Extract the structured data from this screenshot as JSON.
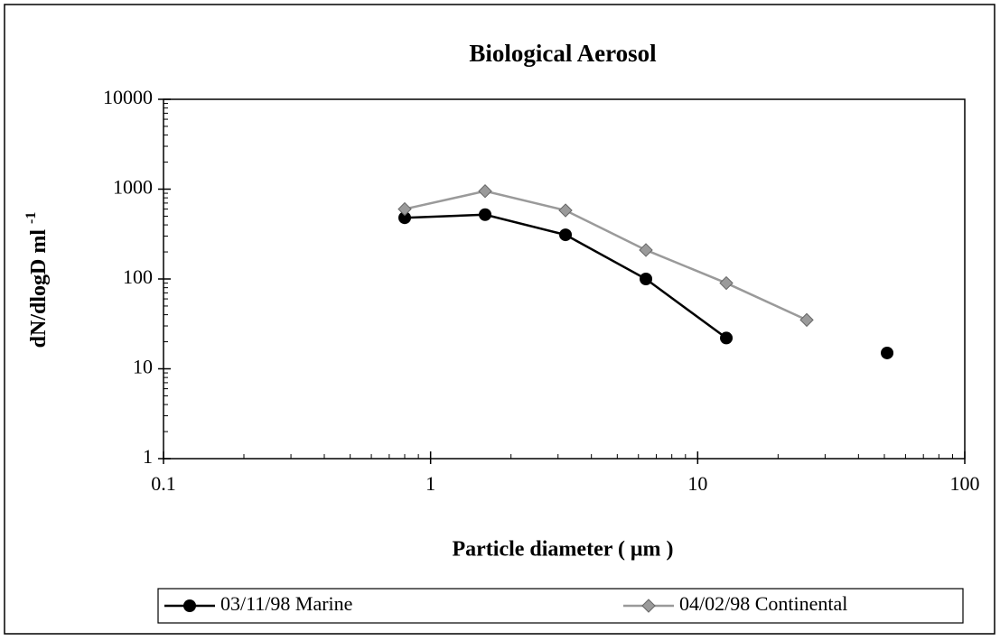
{
  "chart_data": {
    "type": "line",
    "title": "Biological Aerosol",
    "xlabel": "Particle  diameter  ( μm )",
    "ylabel": "dN/dlogD ml",
    "ylabel_superscript": "-1",
    "x": [
      0.8,
      1.6,
      3.2,
      6.4,
      12.8,
      25.6,
      51.2
    ],
    "series": [
      {
        "name": "03/11/98 Marine",
        "color": "#000000",
        "marker": "circle",
        "values": [
          480,
          520,
          310,
          100,
          22,
          null,
          15
        ]
      },
      {
        "name": "04/02/98 Continental",
        "color": "#9a9a9a",
        "marker": "diamond",
        "values": [
          600,
          950,
          580,
          210,
          90,
          35,
          null
        ]
      }
    ],
    "xlim": [
      0.1,
      100
    ],
    "xticks": [
      0.1,
      1,
      10,
      100
    ],
    "xlog": true,
    "ylim": [
      1,
      10000
    ],
    "yticks": [
      1,
      10,
      100,
      1000,
      10000
    ],
    "ylog": true,
    "grid": false,
    "legend": "bottom"
  }
}
